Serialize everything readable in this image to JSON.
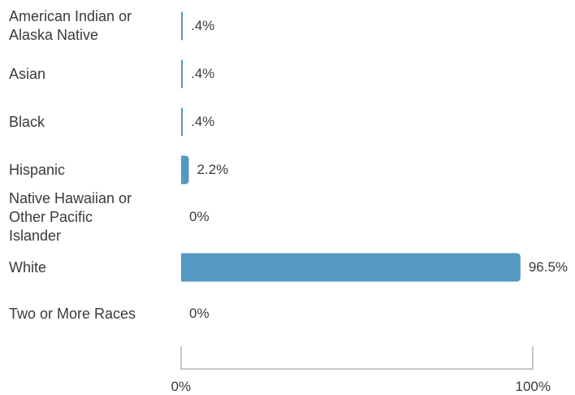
{
  "chart_data": {
    "type": "bar",
    "orientation": "horizontal",
    "categories": [
      "American Indian or\nAlaska Native",
      "Asian",
      "Black",
      "Hispanic",
      "Native Hawaiian or\nOther Pacific\nIslander",
      "White",
      "Two or More Races"
    ],
    "values": [
      0.4,
      0.4,
      0.4,
      2.2,
      0,
      96.5,
      0
    ],
    "value_labels": [
      ".4%",
      ".4%",
      ".4%",
      "2.2%",
      "0%",
      "96.5%",
      "0%"
    ],
    "xlim": [
      0,
      100
    ],
    "x_ticks": [
      0,
      100
    ],
    "x_tick_labels": [
      "0%",
      "100%"
    ],
    "title": "",
    "xlabel": "",
    "ylabel": "",
    "grid": false,
    "bar_color": "#5499c1",
    "axis_color": "#b5b5b5"
  }
}
